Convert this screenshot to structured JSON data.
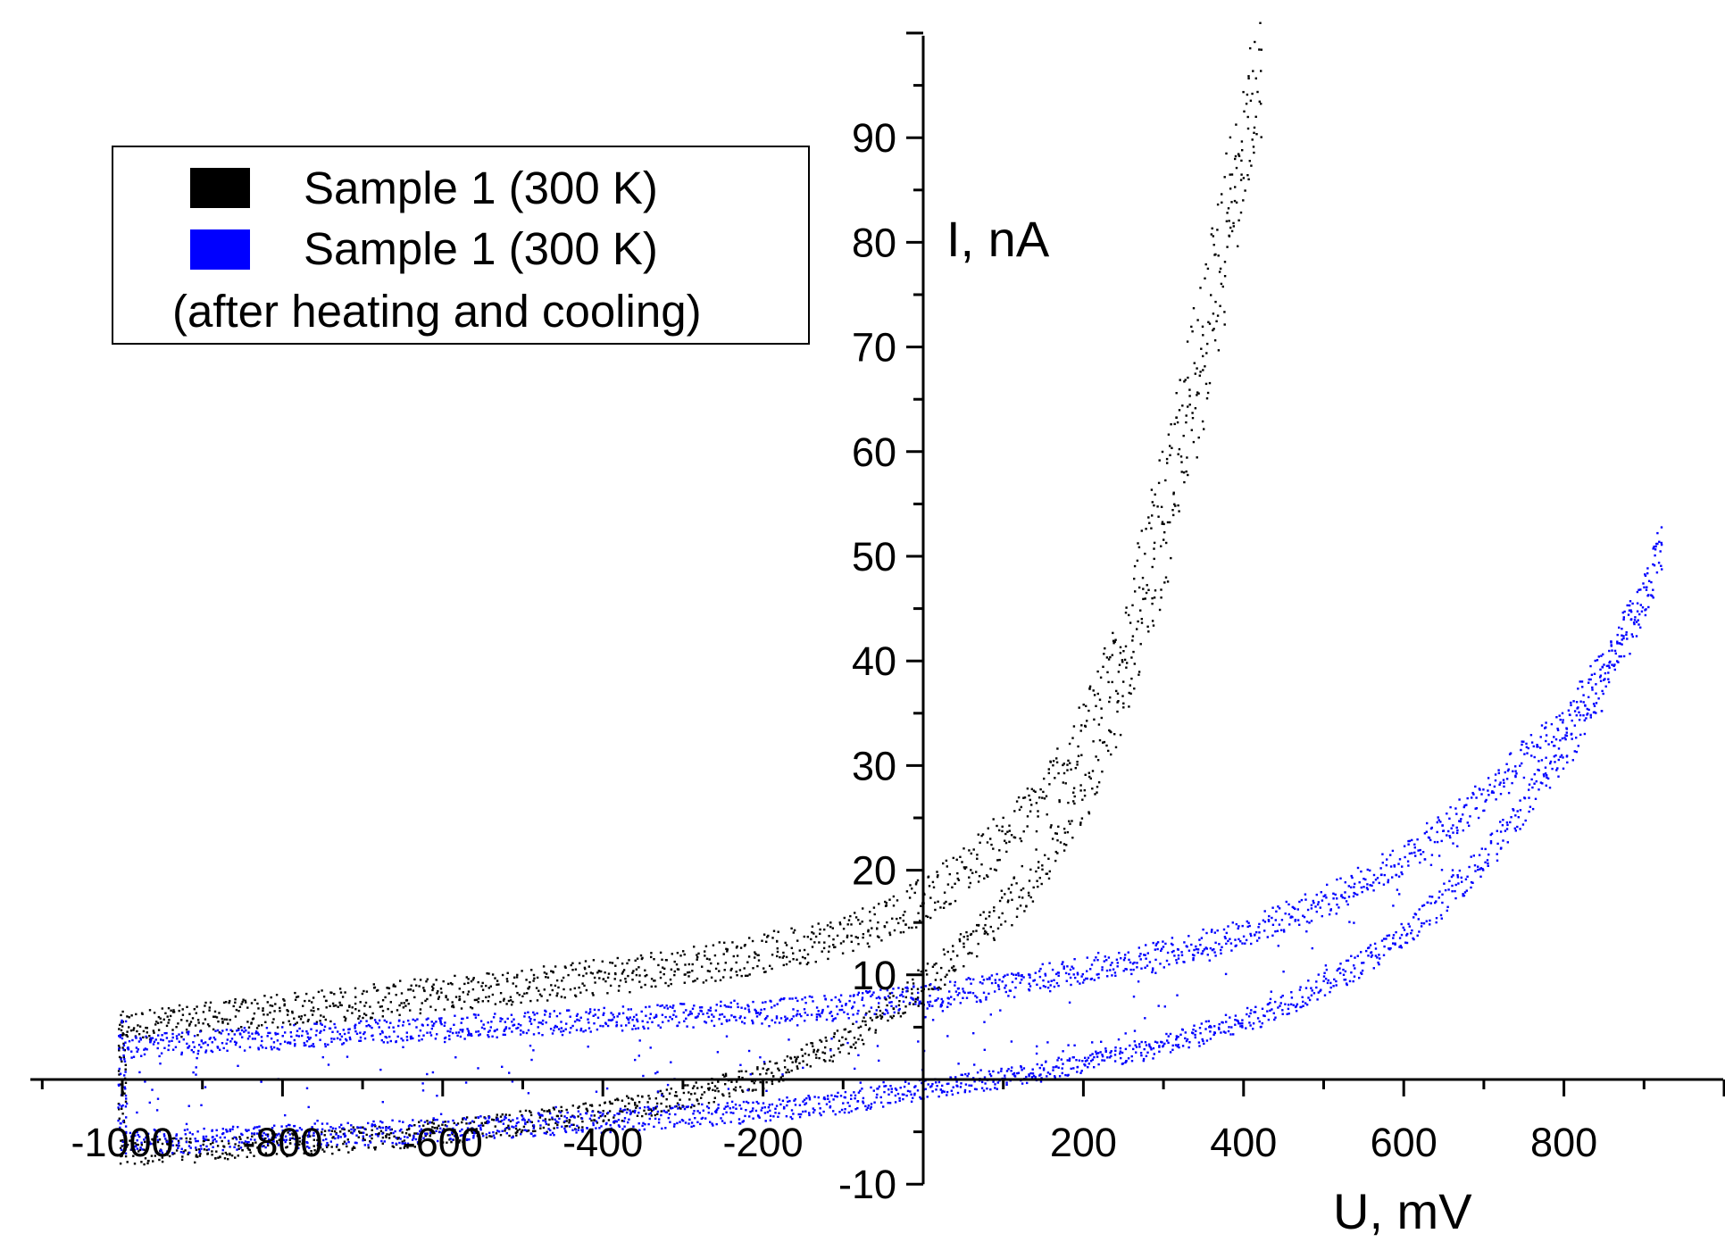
{
  "chart_data": {
    "type": "scatter",
    "title": "",
    "xlabel": "U, mV",
    "ylabel": "I, nA",
    "xlim": [
      -1100,
      1000
    ],
    "ylim": [
      -10,
      100
    ],
    "x_ticks": [
      -1000,
      -800,
      -600,
      -400,
      -200,
      200,
      400,
      600,
      800
    ],
    "y_ticks": [
      -10,
      10,
      20,
      30,
      40,
      50,
      60,
      70,
      80,
      90
    ],
    "grid": false,
    "legend_position": "top-left",
    "series": [
      {
        "name": "Sample 1 (300 K)",
        "color": "#000000",
        "marker": "dot",
        "branches": [
          {
            "label": "upper",
            "x": [
              -1000,
              -900,
              -800,
              -700,
              -600,
              -500,
              -400,
              -300,
              -200,
              -100,
              0,
              50,
              100,
              150,
              200,
              250,
              300,
              350,
              400,
              420
            ],
            "y": [
              5,
              5.8,
              6.6,
              7.4,
              8.2,
              9.0,
              9.8,
              10.8,
              12.0,
              13.8,
              17,
              20,
              23,
              27,
              33,
              43,
              56,
              72,
              90,
              99
            ]
          },
          {
            "label": "lower",
            "x": [
              -1000,
              -900,
              -800,
              -700,
              -600,
              -500,
              -400,
              -300,
              -200,
              -100,
              0,
              50,
              100,
              150,
              200,
              250,
              300,
              350,
              400,
              420
            ],
            "y": [
              -7,
              -6.7,
              -6.2,
              -5.7,
              -5.0,
              -4.2,
              -3.2,
              -1.8,
              0.3,
              3.5,
              9,
              12.5,
              16,
              20.5,
              27,
              37,
              50,
              67,
              87,
              97
            ]
          }
        ]
      },
      {
        "name": "Sample 1 (300 K) (after heating and cooling)",
        "color": "#0000ff",
        "marker": "dot",
        "branches": [
          {
            "label": "upper",
            "x": [
              -1000,
              -900,
              -800,
              -700,
              -600,
              -500,
              -400,
              -300,
              -200,
              -100,
              0,
              100,
              200,
              300,
              400,
              500,
              600,
              700,
              800,
              850,
              900,
              920
            ],
            "y": [
              3,
              3.6,
              4.0,
              4.5,
              4.9,
              5.3,
              5.7,
              6.1,
              6.5,
              7.0,
              7.8,
              9.0,
              10.5,
              12.0,
              14.0,
              17.0,
              21.0,
              27.0,
              34.0,
              39.0,
              46.0,
              51.0
            ]
          },
          {
            "label": "lower",
            "x": [
              -1000,
              -900,
              -800,
              -700,
              -600,
              -500,
              -400,
              -300,
              -200,
              -100,
              0,
              100,
              200,
              300,
              400,
              500,
              600,
              700,
              800,
              850,
              900,
              920
            ],
            "y": [
              -6.0,
              -5.8,
              -5.5,
              -5.2,
              -4.8,
              -4.4,
              -4.0,
              -3.5,
              -3.0,
              -2.2,
              -1.0,
              0.2,
              1.5,
              3.2,
              5.5,
              9.0,
              13.5,
              21.0,
              31.0,
              38.0,
              46.0,
              51.0
            ]
          }
        ]
      }
    ]
  },
  "legend": {
    "entries": [
      {
        "label": "Sample 1 (300 K)",
        "color": "#000000"
      },
      {
        "label": "Sample 1 (300 K)",
        "color": "#0000ff"
      }
    ],
    "note": "(after heating and cooling)"
  }
}
